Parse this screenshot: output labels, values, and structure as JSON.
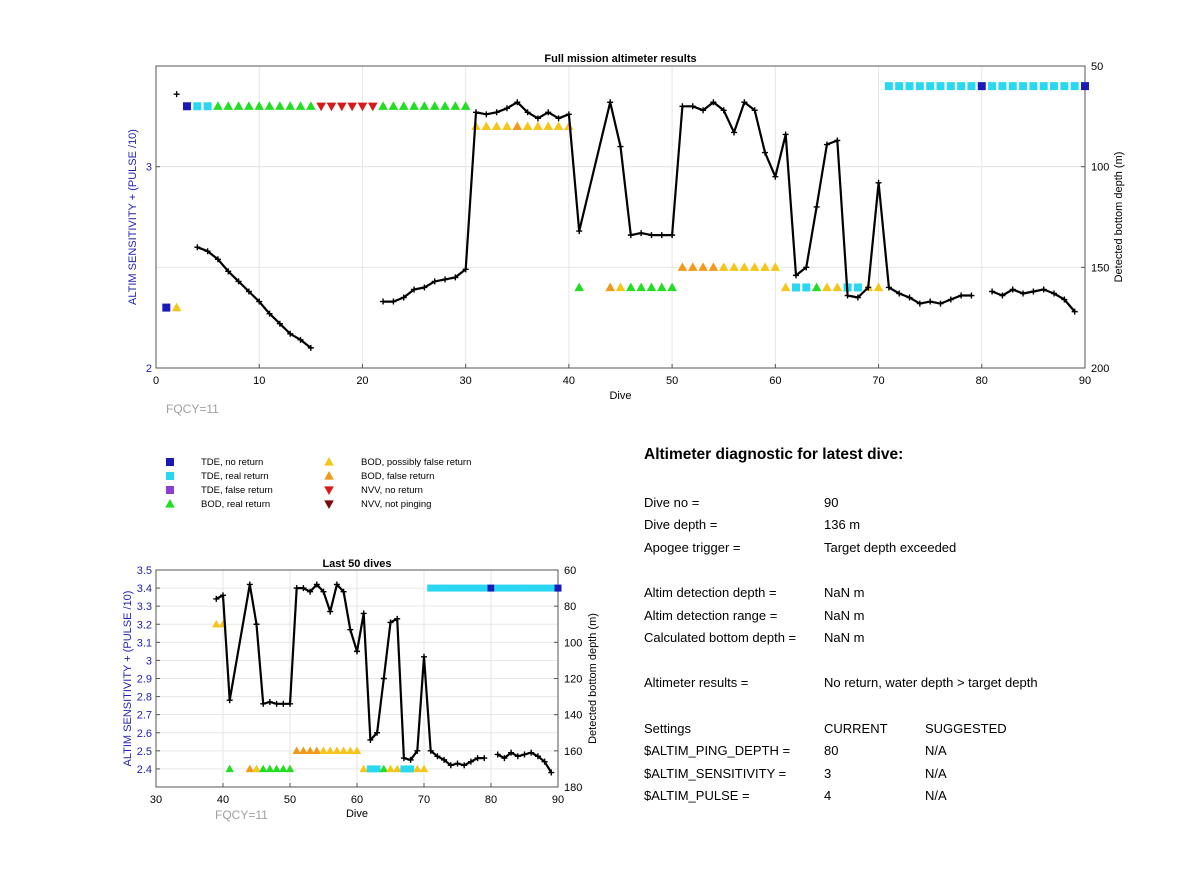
{
  "chart_data": [
    {
      "type": "line",
      "title": "Full mission altimeter results",
      "xlabel": "Dive",
      "ylabel_left": "ALTIM SENSITIVITY + (PULSE /10)",
      "ylabel_right": "Detected bottom depth (m)",
      "xlim": [
        0,
        90
      ],
      "ylim_left": [
        2,
        3.5
      ],
      "ylim_right": [
        50,
        200
      ],
      "right_axis_reversed": true,
      "x_ticks": [
        "0",
        "10",
        "20",
        "30",
        "40",
        "50",
        "60",
        "70",
        "80",
        "90"
      ],
      "y_left_ticks": [
        "2",
        "3"
      ],
      "y_right_ticks": [
        "50",
        "100",
        "150",
        "200"
      ],
      "grid": true,
      "annotation": "FQCY=11",
      "depth_series": {
        "name": "Detected bottom depth",
        "color": "#000000",
        "segments": [
          [
            [
              2,
              64
            ]
          ],
          [
            [
              4,
              140
            ],
            [
              5,
              142
            ],
            [
              6,
              146
            ],
            [
              7,
              152
            ],
            [
              8,
              157
            ],
            [
              9,
              162
            ],
            [
              10,
              167
            ],
            [
              11,
              173
            ],
            [
              12,
              178
            ],
            [
              13,
              183
            ],
            [
              14,
              186
            ],
            [
              15,
              190
            ]
          ],
          [
            [
              22,
              167
            ],
            [
              23,
              167
            ],
            [
              24,
              165
            ],
            [
              25,
              161
            ],
            [
              26,
              160
            ],
            [
              27,
              157
            ],
            [
              28,
              156
            ],
            [
              29,
              155
            ],
            [
              30,
              151
            ],
            [
              31,
              73
            ],
            [
              32,
              74
            ],
            [
              33,
              73
            ],
            [
              34,
              71
            ],
            [
              35,
              68
            ],
            [
              36,
              73
            ],
            [
              37,
              76
            ],
            [
              38,
              73
            ],
            [
              39,
              76
            ],
            [
              40,
              74
            ],
            [
              41,
              132
            ],
            [
              44,
              68
            ],
            [
              45,
              90
            ],
            [
              46,
              134
            ],
            [
              47,
              133
            ],
            [
              48,
              134
            ],
            [
              49,
              134
            ],
            [
              50,
              134
            ],
            [
              51,
              70
            ],
            [
              52,
              70
            ],
            [
              53,
              72
            ],
            [
              54,
              68
            ],
            [
              55,
              72
            ],
            [
              56,
              83
            ],
            [
              57,
              68
            ],
            [
              58,
              72
            ],
            [
              59,
              93
            ],
            [
              60,
              105
            ],
            [
              61,
              84
            ],
            [
              62,
              154
            ],
            [
              63,
              150
            ],
            [
              64,
              120
            ],
            [
              65,
              89
            ],
            [
              66,
              87
            ],
            [
              67,
              164
            ],
            [
              68,
              165
            ],
            [
              69,
              160
            ],
            [
              70,
              108
            ],
            [
              71,
              160
            ],
            [
              72,
              163
            ],
            [
              73,
              165
            ],
            [
              74,
              168
            ],
            [
              75,
              167
            ],
            [
              76,
              168
            ],
            [
              77,
              166
            ],
            [
              78,
              164
            ],
            [
              79,
              164
            ]
          ],
          [
            [
              81,
              162
            ],
            [
              82,
              164
            ],
            [
              83,
              161
            ],
            [
              84,
              163
            ],
            [
              85,
              162
            ],
            [
              86,
              161
            ],
            [
              87,
              163
            ],
            [
              88,
              166
            ],
            [
              89,
              172
            ]
          ]
        ]
      },
      "marker_runs": [
        {
          "category": "tde-no-return",
          "xs": [
            1
          ],
          "y": 2.3
        },
        {
          "category": "bod-possibly-false",
          "xs": [
            2
          ],
          "y": 2.3
        },
        {
          "category": "tde-no-return",
          "xs": [
            3
          ],
          "y": 3.3
        },
        {
          "category": "tde-real-return",
          "xs": [
            4,
            5
          ],
          "y": 3.3
        },
        {
          "category": "bod-real-return",
          "xs": [
            6,
            7,
            8,
            9,
            10,
            11,
            12,
            13,
            14,
            15
          ],
          "y": 3.3
        },
        {
          "category": "nvv-no-return",
          "xs": [
            16,
            17,
            18,
            19,
            20,
            21
          ],
          "y": 3.3
        },
        {
          "category": "bod-real-return",
          "xs": [
            22,
            23,
            24,
            25,
            26,
            27,
            28,
            29,
            30
          ],
          "y": 3.3
        },
        {
          "category": "bod-possibly-false",
          "xs": [
            31,
            32,
            33,
            34
          ],
          "y": 3.2
        },
        {
          "category": "bod-false-return",
          "xs": [
            35
          ],
          "y": 3.2
        },
        {
          "category": "bod-possibly-false",
          "xs": [
            36,
            37,
            38,
            39,
            40
          ],
          "y": 3.2
        },
        {
          "category": "bod-real-return",
          "xs": [
            41
          ],
          "y": 2.4
        },
        {
          "category": "bod-false-return",
          "xs": [
            44
          ],
          "y": 2.4
        },
        {
          "category": "bod-possibly-false",
          "xs": [
            45
          ],
          "y": 2.4
        },
        {
          "category": "bod-real-return",
          "xs": [
            46,
            47,
            48,
            49,
            50
          ],
          "y": 2.4
        },
        {
          "category": "bod-false-return",
          "xs": [
            51,
            52,
            53,
            54
          ],
          "y": 2.5
        },
        {
          "category": "bod-possibly-false",
          "xs": [
            55,
            56,
            57,
            58,
            59,
            60
          ],
          "y": 2.5
        },
        {
          "category": "bod-possibly-false",
          "xs": [
            61
          ],
          "y": 2.4
        },
        {
          "category": "tde-real-return",
          "xs": [
            62,
            63
          ],
          "y": 2.4
        },
        {
          "category": "bod-real-return",
          "xs": [
            64
          ],
          "y": 2.4
        },
        {
          "category": "bod-possibly-false",
          "xs": [
            65,
            66
          ],
          "y": 2.4
        },
        {
          "category": "tde-real-return",
          "xs": [
            67,
            68
          ],
          "y": 2.4
        },
        {
          "category": "bod-possibly-false",
          "xs": [
            69,
            70
          ],
          "y": 2.4
        },
        {
          "category": "tde-real-return",
          "xs": [
            71,
            72,
            73,
            74,
            75,
            76,
            77,
            78,
            79
          ],
          "y": 3.4
        },
        {
          "category": "tde-no-return",
          "xs": [
            80
          ],
          "y": 3.4
        },
        {
          "category": "tde-real-return",
          "xs": [
            81,
            82,
            83,
            84,
            85,
            86,
            87,
            88,
            89
          ],
          "y": 3.4
        },
        {
          "category": "tde-no-return",
          "xs": [
            90
          ],
          "y": 3.4
        }
      ]
    },
    {
      "type": "line",
      "title": "Last 50 dives",
      "xlabel": "Dive",
      "ylabel_left": "ALTIM SENSITIVITY + (PULSE /10)",
      "ylabel_right": "Detected bottom depth (m)",
      "xlim": [
        30,
        90
      ],
      "ylim_left": [
        2.3,
        3.5
      ],
      "ylim_right": [
        60,
        180
      ],
      "right_axis_reversed": true,
      "x_ticks": [
        "30",
        "40",
        "50",
        "60",
        "70",
        "80",
        "90"
      ],
      "y_left_ticks": [
        "2.4",
        "2.5",
        "2.6",
        "2.7",
        "2.8",
        "2.9",
        "3",
        "3.1",
        "3.2",
        "3.3",
        "3.4",
        "3.5"
      ],
      "y_right_ticks": [
        "60",
        "80",
        "100",
        "120",
        "140",
        "160",
        "180"
      ],
      "grid": true,
      "annotation": "FQCY=11",
      "depth_series": {
        "name": "Detected bottom depth",
        "color": "#000000",
        "segments": [
          [
            [
              39,
              76
            ],
            [
              40,
              74
            ],
            [
              41,
              132
            ],
            [
              44,
              68
            ],
            [
              45,
              90
            ],
            [
              46,
              134
            ],
            [
              47,
              133
            ],
            [
              48,
              134
            ],
            [
              49,
              134
            ],
            [
              50,
              134
            ],
            [
              51,
              70
            ],
            [
              52,
              70
            ],
            [
              53,
              72
            ],
            [
              54,
              68
            ],
            [
              55,
              72
            ],
            [
              56,
              83
            ],
            [
              57,
              68
            ],
            [
              58,
              72
            ],
            [
              59,
              93
            ],
            [
              60,
              105
            ],
            [
              61,
              84
            ],
            [
              62,
              154
            ],
            [
              63,
              150
            ],
            [
              64,
              120
            ],
            [
              65,
              89
            ],
            [
              66,
              87
            ],
            [
              67,
              164
            ],
            [
              68,
              165
            ],
            [
              69,
              160
            ],
            [
              70,
              108
            ],
            [
              71,
              160
            ],
            [
              72,
              163
            ],
            [
              73,
              165
            ],
            [
              74,
              168
            ],
            [
              75,
              167
            ],
            [
              76,
              168
            ],
            [
              77,
              166
            ],
            [
              78,
              164
            ],
            [
              79,
              164
            ]
          ],
          [
            [
              81,
              162
            ],
            [
              82,
              164
            ],
            [
              83,
              161
            ],
            [
              84,
              163
            ],
            [
              85,
              162
            ],
            [
              86,
              161
            ],
            [
              87,
              163
            ],
            [
              88,
              166
            ],
            [
              89,
              172
            ]
          ]
        ]
      },
      "marker_runs": [
        {
          "category": "bod-possibly-false",
          "xs": [
            39,
            40
          ],
          "y": 3.2
        },
        {
          "category": "bod-real-return",
          "xs": [
            41
          ],
          "y": 2.4
        },
        {
          "category": "bod-false-return",
          "xs": [
            44
          ],
          "y": 2.4
        },
        {
          "category": "bod-possibly-false",
          "xs": [
            45
          ],
          "y": 2.4
        },
        {
          "category": "bod-real-return",
          "xs": [
            46,
            47,
            48,
            49,
            50
          ],
          "y": 2.4
        },
        {
          "category": "bod-false-return",
          "xs": [
            51,
            52,
            53,
            54
          ],
          "y": 2.5
        },
        {
          "category": "bod-possibly-false",
          "xs": [
            55,
            56,
            57,
            58,
            59,
            60
          ],
          "y": 2.5
        },
        {
          "category": "bod-possibly-false",
          "xs": [
            61
          ],
          "y": 2.4
        },
        {
          "category": "tde-real-return",
          "xs": [
            62,
            63
          ],
          "y": 2.4
        },
        {
          "category": "bod-real-return",
          "xs": [
            64
          ],
          "y": 2.4
        },
        {
          "category": "bod-possibly-false",
          "xs": [
            65,
            66
          ],
          "y": 2.4
        },
        {
          "category": "tde-real-return",
          "xs": [
            67,
            68
          ],
          "y": 2.4
        },
        {
          "category": "bod-possibly-false",
          "xs": [
            69,
            70
          ],
          "y": 2.4
        },
        {
          "category": "tde-real-return",
          "xs": [
            71,
            72,
            73,
            74,
            75,
            76,
            77,
            78,
            79
          ],
          "y": 3.4
        },
        {
          "category": "tde-no-return",
          "xs": [
            80
          ],
          "y": 3.4
        },
        {
          "category": "tde-real-return",
          "xs": [
            81,
            82,
            83,
            84,
            85,
            86,
            87,
            88,
            89
          ],
          "y": 3.4
        },
        {
          "category": "tde-no-return",
          "xs": [
            90
          ],
          "y": 3.4
        }
      ]
    }
  ],
  "legend": [
    {
      "category": "tde-no-return",
      "label": "TDE, no return",
      "shape": "square",
      "color": "#1a1ab8"
    },
    {
      "category": "tde-real-return",
      "label": "TDE, real return",
      "shape": "square",
      "color": "#29d8f0"
    },
    {
      "category": "tde-false-return",
      "label": "TDE, false return",
      "shape": "square",
      "color": "#8a3fd1"
    },
    {
      "category": "bod-real-return",
      "label": "BOD, real return",
      "shape": "triangle-up",
      "color": "#22dd22"
    },
    {
      "category": "bod-possibly-false",
      "label": "BOD, possibly false return",
      "shape": "triangle-up",
      "color": "#f5c518"
    },
    {
      "category": "bod-false-return",
      "label": "BOD, false return",
      "shape": "triangle-up",
      "color": "#f09a1a"
    },
    {
      "category": "nvv-no-return",
      "label": "NVV, no return",
      "shape": "triangle-down",
      "color": "#d61a1a"
    },
    {
      "category": "nvv-not-pinging",
      "label": "NVV, not pinging",
      "shape": "triangle-down",
      "color": "#7a0a0a"
    }
  ],
  "diagnostic": {
    "title": "Altimeter diagnostic for latest dive:",
    "rows": [
      {
        "label": "Dive no =",
        "value": "90"
      },
      {
        "label": "Dive depth =",
        "value": "136 m"
      },
      {
        "label": "Apogee trigger =",
        "value": "Target depth exceeded"
      },
      {
        "label": "Altim detection depth =",
        "value": "NaN m"
      },
      {
        "label": "Altim detection range =",
        "value": "NaN m"
      },
      {
        "label": "Calculated bottom depth =",
        "value": "NaN m"
      },
      {
        "label": "Altimeter results =",
        "value": "No return, water depth > target depth"
      }
    ],
    "settings_header": {
      "label": "Settings",
      "current": "CURRENT",
      "suggested": "SUGGESTED"
    },
    "settings": [
      {
        "label": "$ALTIM_PING_DEPTH =",
        "current": "80",
        "suggested": "N/A"
      },
      {
        "label": "$ALTIM_SENSITIVITY =",
        "current": "3",
        "suggested": "N/A"
      },
      {
        "label": "$ALTIM_PULSE =",
        "current": "4",
        "suggested": "N/A"
      }
    ]
  }
}
